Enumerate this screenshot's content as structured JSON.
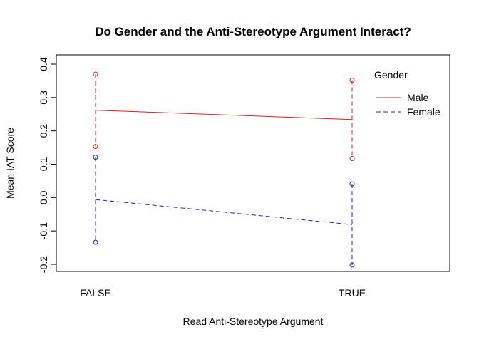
{
  "chart_data": {
    "type": "line",
    "title": "Do Gender and the Anti-Stereotype Argument Interact?",
    "xlabel": "Read Anti-Stereotype Argument",
    "ylabel": "Mean IAT Score",
    "categories": [
      "FALSE",
      "TRUE"
    ],
    "ylim": [
      -0.2,
      0.4
    ],
    "yticks": [
      "-0.2",
      "-0.1",
      "0.0",
      "0.1",
      "0.2",
      "0.3",
      "0.4"
    ],
    "grid": false,
    "legend": {
      "title": "Gender",
      "position": "top-right"
    },
    "series": [
      {
        "name": "Male",
        "color": "#DF2020",
        "line_style": "solid",
        "values": [
          0.262,
          0.234
        ],
        "error_upper": [
          0.37,
          0.352
        ],
        "error_lower": [
          0.153,
          0.117
        ]
      },
      {
        "name": "Female",
        "color": "#2020C8",
        "line_style": "dashed",
        "values": [
          -0.006,
          -0.081
        ],
        "error_upper": [
          0.121,
          0.041
        ],
        "error_lower": [
          -0.134,
          -0.202
        ]
      }
    ]
  }
}
